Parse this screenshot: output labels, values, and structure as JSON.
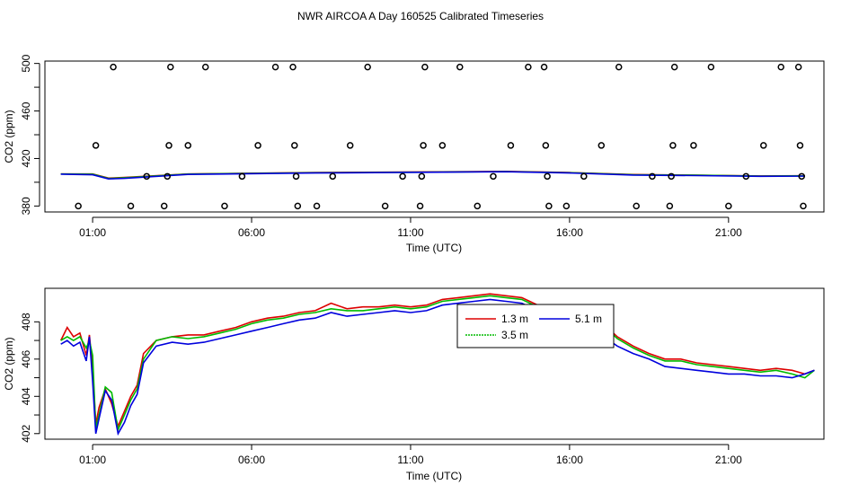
{
  "title": "NWR AIRCOA A  Day 160525  Calibrated Timeseries",
  "chart_data": [
    {
      "type": "scatter",
      "xlabel": "Time (UTC)",
      "ylabel": "CO2 (ppm)",
      "xlim": [
        -0.5,
        24.0
      ],
      "ylim": [
        375,
        502
      ],
      "xticks": [
        1,
        6,
        11,
        16,
        21
      ],
      "xtick_labels": [
        "01:00",
        "06:00",
        "11:00",
        "16:00",
        "21:00"
      ],
      "yticks": [
        380,
        420,
        460,
        500
      ],
      "ytick_labels": [
        "380",
        "420",
        "460",
        "500"
      ],
      "calibration_points": [
        {
          "x": 0.55,
          "y": 380
        },
        {
          "x": 1.1,
          "y": 431
        },
        {
          "x": 1.65,
          "y": 497
        },
        {
          "x": 2.2,
          "y": 380
        },
        {
          "x": 2.7,
          "y": 405
        },
        {
          "x": 3.25,
          "y": 380
        },
        {
          "x": 3.35,
          "y": 405
        },
        {
          "x": 3.4,
          "y": 431
        },
        {
          "x": 3.45,
          "y": 497
        },
        {
          "x": 4.0,
          "y": 431
        },
        {
          "x": 4.55,
          "y": 497
        },
        {
          "x": 5.15,
          "y": 380
        },
        {
          "x": 5.7,
          "y": 405
        },
        {
          "x": 6.2,
          "y": 431
        },
        {
          "x": 6.75,
          "y": 497
        },
        {
          "x": 7.3,
          "y": 497
        },
        {
          "x": 7.35,
          "y": 431
        },
        {
          "x": 7.4,
          "y": 405
        },
        {
          "x": 7.45,
          "y": 380
        },
        {
          "x": 8.05,
          "y": 380
        },
        {
          "x": 8.55,
          "y": 405
        },
        {
          "x": 9.1,
          "y": 431
        },
        {
          "x": 9.65,
          "y": 497
        },
        {
          "x": 10.2,
          "y": 380
        },
        {
          "x": 10.75,
          "y": 405
        },
        {
          "x": 11.3,
          "y": 380
        },
        {
          "x": 11.35,
          "y": 405
        },
        {
          "x": 11.4,
          "y": 431
        },
        {
          "x": 11.45,
          "y": 497
        },
        {
          "x": 12.0,
          "y": 431
        },
        {
          "x": 12.55,
          "y": 497
        },
        {
          "x": 13.1,
          "y": 380
        },
        {
          "x": 13.6,
          "y": 405
        },
        {
          "x": 14.15,
          "y": 431
        },
        {
          "x": 14.7,
          "y": 497
        },
        {
          "x": 15.2,
          "y": 497
        },
        {
          "x": 15.25,
          "y": 431
        },
        {
          "x": 15.3,
          "y": 405
        },
        {
          "x": 15.35,
          "y": 380
        },
        {
          "x": 15.9,
          "y": 380
        },
        {
          "x": 16.45,
          "y": 405
        },
        {
          "x": 17.0,
          "y": 431
        },
        {
          "x": 17.55,
          "y": 497
        },
        {
          "x": 18.1,
          "y": 380
        },
        {
          "x": 18.6,
          "y": 405
        },
        {
          "x": 19.15,
          "y": 380
        },
        {
          "x": 19.2,
          "y": 405
        },
        {
          "x": 19.25,
          "y": 431
        },
        {
          "x": 19.3,
          "y": 497
        },
        {
          "x": 19.9,
          "y": 431
        },
        {
          "x": 20.45,
          "y": 497
        },
        {
          "x": 21.0,
          "y": 380
        },
        {
          "x": 21.55,
          "y": 405
        },
        {
          "x": 22.1,
          "y": 431
        },
        {
          "x": 22.65,
          "y": 497
        },
        {
          "x": 23.2,
          "y": 497
        },
        {
          "x": 23.25,
          "y": 431
        },
        {
          "x": 23.3,
          "y": 405
        },
        {
          "x": 23.35,
          "y": 380
        }
      ],
      "lines": [
        {
          "color": "#dd0000",
          "x": [
            0,
            1,
            1.5,
            2,
            4,
            8,
            12,
            14,
            16,
            18,
            20,
            22,
            23.4
          ],
          "y": [
            407,
            407,
            403.5,
            404,
            407,
            408.2,
            408.8,
            409.2,
            408.2,
            406.5,
            406,
            405.3,
            405.5
          ]
        },
        {
          "color": "#00bb00",
          "x": [
            0,
            1,
            1.5,
            2,
            4,
            8,
            12,
            14,
            16,
            18,
            20,
            22,
            23.4
          ],
          "y": [
            407,
            406.8,
            403.2,
            403.8,
            406.9,
            408,
            408.6,
            409,
            408,
            406.4,
            405.9,
            405.2,
            405.4
          ]
        },
        {
          "color": "#0000dd",
          "x": [
            0,
            1,
            1.5,
            2,
            4,
            8,
            12,
            14,
            16,
            18,
            20,
            22,
            23.4
          ],
          "y": [
            406.8,
            406.3,
            402.8,
            403.3,
            406.6,
            407.8,
            408.5,
            408.9,
            407.8,
            406.1,
            405.6,
            405,
            405.2
          ]
        }
      ]
    },
    {
      "type": "line",
      "xlabel": "Time (UTC)",
      "ylabel": "CO2 (ppm)",
      "xlim": [
        -0.5,
        24.0
      ],
      "ylim": [
        401.7,
        409.8
      ],
      "xticks": [
        1,
        6,
        11,
        16,
        21
      ],
      "xtick_labels": [
        "01:00",
        "06:00",
        "11:00",
        "16:00",
        "21:00"
      ],
      "yticks": [
        402,
        404,
        406,
        408
      ],
      "ytick_labels": [
        "402",
        "404",
        "406",
        "408"
      ],
      "legend_position": "top-center",
      "series": [
        {
          "name": "1.3 m",
          "color": "#dd0000",
          "x": [
            0,
            0.2,
            0.4,
            0.6,
            0.8,
            0.9,
            1.0,
            1.1,
            1.2,
            1.4,
            1.6,
            1.8,
            2.0,
            2.2,
            2.4,
            2.6,
            3.0,
            3.5,
            4.0,
            4.5,
            5.0,
            5.5,
            6.0,
            6.5,
            7.0,
            7.5,
            8.0,
            8.5,
            9.0,
            9.5,
            10.0,
            10.5,
            11.0,
            11.5,
            12.0,
            12.5,
            13.0,
            13.5,
            14.0,
            14.5,
            15.0,
            15.5,
            16.0,
            16.5,
            17.0,
            17.5,
            18.0,
            18.5,
            19.0,
            19.5,
            20.0,
            20.5,
            21.0,
            21.5,
            22.0,
            22.5,
            23.0,
            23.4,
            23.7
          ],
          "y": [
            407.0,
            407.7,
            407.2,
            407.4,
            406.2,
            407.3,
            405.5,
            402.5,
            403.4,
            404.4,
            403.6,
            402.4,
            403.2,
            404.0,
            404.6,
            406.3,
            407.0,
            407.2,
            407.3,
            407.3,
            407.5,
            407.7,
            408.0,
            408.2,
            408.3,
            408.5,
            408.6,
            409.0,
            408.7,
            408.8,
            408.8,
            408.9,
            408.8,
            408.9,
            409.2,
            409.3,
            409.4,
            409.5,
            409.4,
            409.3,
            408.9,
            408.7,
            408.5,
            408.3,
            408.0,
            407.2,
            406.7,
            406.3,
            406.0,
            406.0,
            405.8,
            405.7,
            405.6,
            405.5,
            405.4,
            405.5,
            405.4,
            405.2,
            405.4
          ]
        },
        {
          "name": "3.5 m",
          "color": "#00bb00",
          "x": [
            0,
            0.2,
            0.4,
            0.6,
            0.8,
            0.9,
            1.0,
            1.1,
            1.2,
            1.4,
            1.6,
            1.8,
            2.0,
            2.2,
            2.4,
            2.6,
            3.0,
            3.5,
            4.0,
            4.5,
            5.0,
            5.5,
            6.0,
            6.5,
            7.0,
            7.5,
            8.0,
            8.5,
            9.0,
            9.5,
            10.0,
            10.5,
            11.0,
            11.5,
            12.0,
            12.5,
            13.0,
            13.5,
            14.0,
            14.5,
            15.0,
            15.5,
            16.0,
            16.5,
            17.0,
            17.5,
            18.0,
            18.5,
            19.0,
            19.5,
            20.0,
            20.5,
            21.0,
            21.5,
            22.0,
            22.5,
            23.0,
            23.4,
            23.7
          ],
          "y": [
            407.0,
            407.2,
            407.0,
            407.2,
            406.6,
            407.0,
            406.2,
            402.3,
            403.0,
            404.5,
            404.2,
            402.2,
            403.0,
            403.8,
            404.4,
            406.0,
            407.0,
            407.2,
            407.1,
            407.2,
            407.4,
            407.6,
            407.9,
            408.1,
            408.2,
            408.4,
            408.5,
            408.7,
            408.6,
            408.6,
            408.7,
            408.8,
            408.7,
            408.8,
            409.1,
            409.2,
            409.3,
            409.4,
            409.3,
            409.2,
            408.8,
            408.6,
            408.4,
            408.2,
            407.9,
            407.1,
            406.6,
            406.2,
            405.9,
            405.9,
            405.7,
            405.6,
            405.5,
            405.4,
            405.3,
            405.4,
            405.2,
            405.0,
            405.4
          ]
        },
        {
          "name": "5.1 m",
          "color": "#0000dd",
          "x": [
            0,
            0.2,
            0.4,
            0.6,
            0.8,
            0.9,
            1.0,
            1.1,
            1.2,
            1.4,
            1.6,
            1.8,
            2.0,
            2.2,
            2.4,
            2.6,
            3.0,
            3.5,
            4.0,
            4.5,
            5.0,
            5.5,
            6.0,
            6.5,
            7.0,
            7.5,
            8.0,
            8.5,
            9.0,
            9.5,
            10.0,
            10.5,
            11.0,
            11.5,
            12.0,
            12.5,
            13.0,
            13.5,
            14.0,
            14.5,
            15.0,
            15.5,
            16.0,
            16.5,
            17.0,
            17.5,
            18.0,
            18.5,
            19.0,
            19.5,
            20.0,
            20.5,
            21.0,
            21.5,
            22.0,
            22.5,
            23.0,
            23.4,
            23.7
          ],
          "y": [
            406.8,
            407.0,
            406.7,
            406.9,
            405.9,
            407.2,
            404.8,
            402.0,
            402.8,
            404.3,
            403.8,
            402.0,
            402.6,
            403.5,
            404.1,
            405.8,
            406.7,
            406.9,
            406.8,
            406.9,
            407.1,
            407.3,
            407.5,
            407.7,
            407.9,
            408.1,
            408.2,
            408.5,
            408.3,
            408.4,
            408.5,
            408.6,
            408.5,
            408.6,
            408.9,
            409.0,
            409.1,
            409.2,
            409.1,
            409.0,
            408.6,
            408.3,
            408.0,
            407.7,
            407.3,
            406.7,
            406.3,
            406.0,
            405.6,
            405.5,
            405.4,
            405.3,
            405.2,
            405.2,
            405.1,
            405.1,
            405.0,
            405.2,
            405.4
          ]
        }
      ]
    }
  ]
}
